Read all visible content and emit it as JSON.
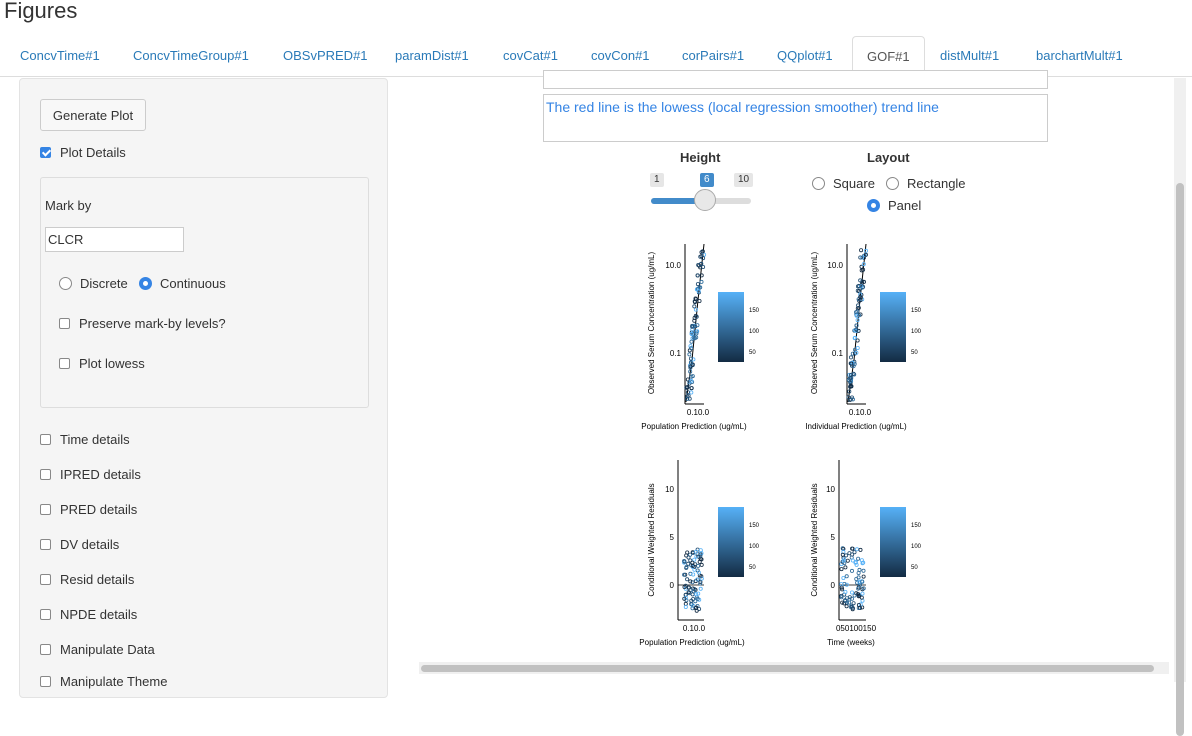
{
  "page": {
    "title": "Figures"
  },
  "tabs": [
    "ConcvTime#1",
    "ConcvTimeGroup#1",
    "OBSvPRED#1",
    "paramDist#1",
    "covCat#1",
    "covCon#1",
    "corPairs#1",
    "QQplot#1",
    "GOF#1",
    "distMult#1",
    "barchartMult#1"
  ],
  "active_tab": "GOF#1",
  "sidebar": {
    "generate_button": "Generate Plot",
    "plot_details": {
      "label": "Plot Details",
      "checked": true
    },
    "mark_by": {
      "label": "Mark by",
      "value": "CLCR",
      "discrete_label": "Discrete",
      "continuous_label": "Continuous",
      "selected": "Continuous",
      "preserve_label": "Preserve mark-by levels?",
      "lowess_label": "Plot lowess"
    },
    "checkboxes": [
      "Time details",
      "IPRED details",
      "PRED details",
      "DV details",
      "Resid details",
      "NPDE details",
      "Manipulate Data",
      "Manipulate Theme"
    ]
  },
  "main": {
    "caption_text": "The red line is the lowess (local regression smoother) trend line",
    "height": {
      "label": "Height",
      "min": "1",
      "value": "6",
      "max": "10",
      "fraction": 0.56
    },
    "layout": {
      "label": "Layout",
      "options": [
        "Square",
        "Rectangle",
        "Panel"
      ],
      "selected": "Panel"
    }
  },
  "plot": {
    "panels": [
      {
        "ylabel": "Observed Serum Concentration (ug/mL)",
        "xlabel": "Population Prediction (ug/mL)",
        "yticks": [
          "10.0",
          "0.1"
        ],
        "xticks": "0.10.0"
      },
      {
        "ylabel": "Observed Serum Concentration (ug/mL)",
        "xlabel": "Individual Prediction (ug/mL)",
        "yticks": [
          "10.0",
          "0.1"
        ],
        "xticks": "0.10.0"
      },
      {
        "ylabel": "Conditional Weighted Residuals",
        "xlabel": "Population Prediction (ug/mL)",
        "yticks": [
          "10",
          "5",
          "0"
        ],
        "xticks": "0.10.0"
      },
      {
        "ylabel": "Conditional Weighted Residuals",
        "xlabel": "Time (weeks)",
        "yticks": [
          "10",
          "5",
          "0"
        ],
        "xticks": "050100150"
      }
    ],
    "legend_ticks": [
      "150",
      "100",
      "50"
    ],
    "colors": {
      "light": "#56b1f7",
      "dark": "#132b43"
    }
  }
}
